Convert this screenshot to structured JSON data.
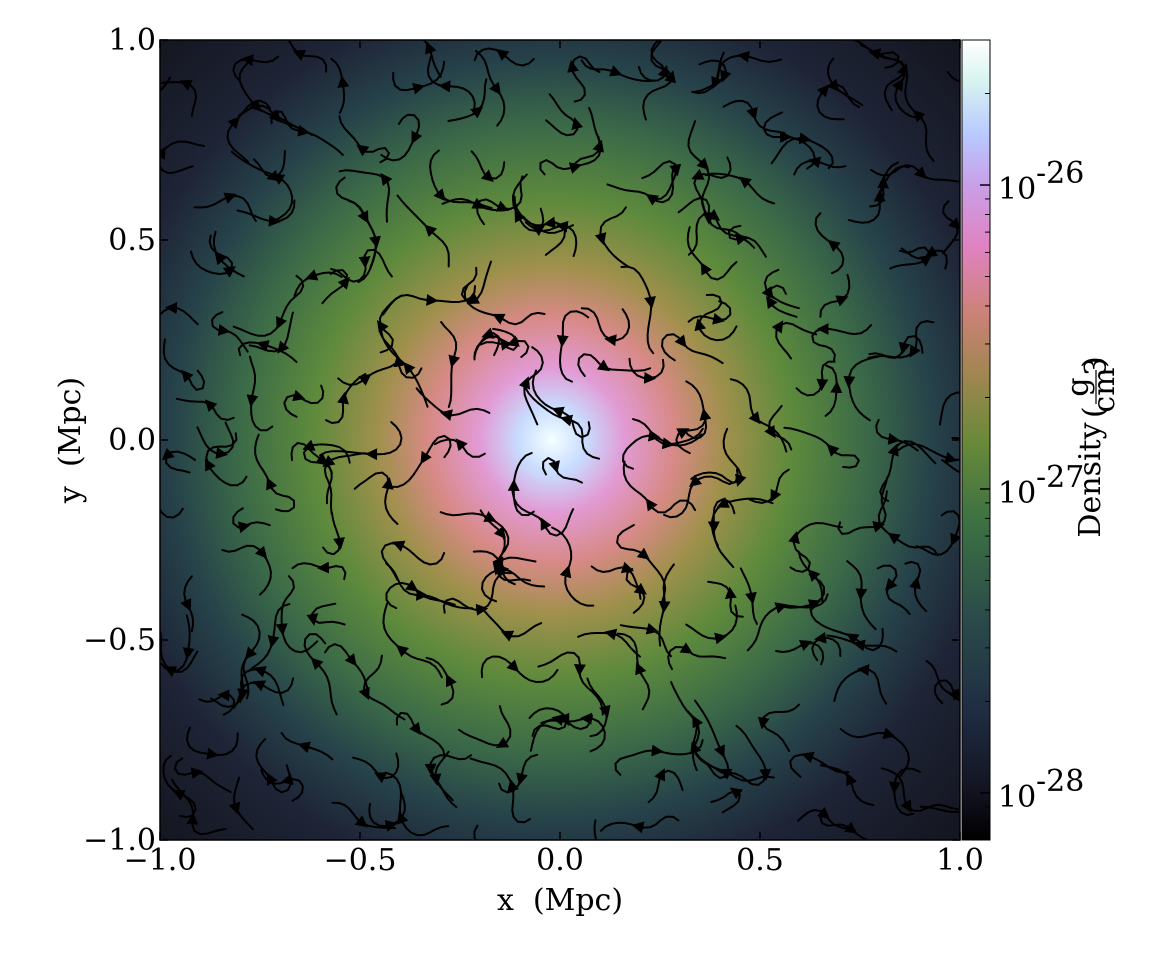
{
  "chart_data": {
    "type": "heatmap",
    "title": "",
    "xlabel": "x  (Mpc)",
    "ylabel": "y  (Mpc)",
    "xlim": [
      -1.0,
      1.0
    ],
    "ylim": [
      -1.0,
      1.0
    ],
    "x_ticks": [
      -1.0,
      -0.5,
      0.0,
      0.5,
      1.0
    ],
    "y_ticks": [
      -1.0,
      -0.5,
      0.0,
      0.5,
      1.0
    ],
    "x_tick_labels": [
      "−1.0",
      "−0.5",
      "0.0",
      "0.5",
      "1.0"
    ],
    "y_tick_labels": [
      "−1.0",
      "−0.5",
      "0.0",
      "0.5",
      "1.0"
    ],
    "grid": false,
    "colorbar": {
      "label": "Density",
      "unit_numerator": "g",
      "unit_denominator": "cm",
      "unit_denominator_exponent": "3",
      "scale": "log",
      "range": [
        7e-29,
        3e-26
      ],
      "ticks": [
        1e-28,
        1e-27,
        1e-26
      ],
      "tick_base": "10",
      "tick_exponents": [
        "-28",
        "-27",
        "-26"
      ],
      "colormap_stops": [
        "#000000",
        "#1f2a40",
        "#2e5a4a",
        "#5c8a3c",
        "#c08a6a",
        "#e080c0",
        "#b8c8ff",
        "#ffffff"
      ]
    },
    "density_field": {
      "description_center": [
        0.0,
        0.0
      ],
      "peak_density": 3e-26,
      "edge_density": 1e-28
    },
    "overlay": "streamlines"
  }
}
